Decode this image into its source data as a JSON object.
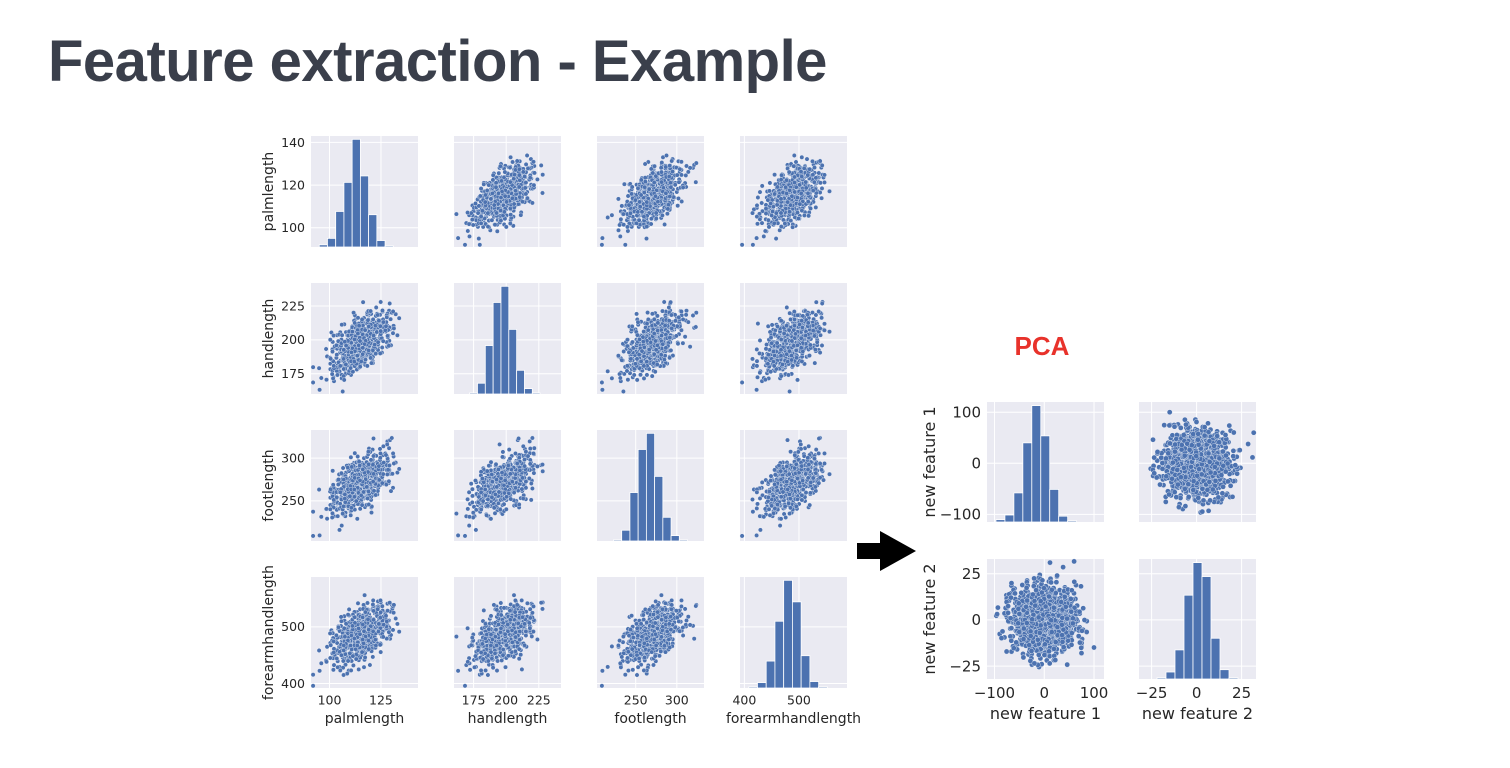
{
  "slide": {
    "title": "Feature extraction - Example",
    "transform_label": "PCA",
    "colors": {
      "title": "#3a3f4b",
      "accent": "#e8322b",
      "point": "#4c72b0",
      "panel_bg": "#eaeaf2"
    },
    "arrow_icon": "right-arrow"
  },
  "chart_data": [
    {
      "type": "scatter",
      "kind": "pairplot",
      "variables": [
        "palmlength",
        "handlength",
        "footlength",
        "forearmhandlength"
      ],
      "ranges": {
        "palmlength": [
          91,
          143
        ],
        "handlength": [
          160,
          242
        ],
        "footlength": [
          203,
          333
        ],
        "forearmhandlength": [
          392,
          588
        ]
      },
      "yticks": {
        "palmlength": [
          100,
          120,
          140
        ],
        "handlength": [
          175,
          200,
          225
        ],
        "footlength": [
          250,
          300
        ],
        "forearmhandlength": [
          400,
          500
        ]
      },
      "xticks": {
        "palmlength": [
          100,
          125
        ],
        "handlength": [
          175,
          200,
          225
        ],
        "footlength": [
          250,
          300
        ],
        "forearmhandlength": [
          400,
          500
        ]
      },
      "means": {
        "palmlength": 115,
        "handlength": 197,
        "footlength": 270,
        "forearmhandlength": 485
      },
      "correlation_with_palmlength_approx": 0.75,
      "diagonal_histograms": {
        "palmlength": {
          "bins": [
            91,
            95,
            99,
            103,
            107,
            111,
            115,
            119,
            123,
            127,
            131,
            135,
            139,
            143
          ],
          "counts": [
            0,
            2,
            8,
            33,
            60,
            100,
            66,
            30,
            6,
            1,
            0,
            0,
            0
          ]
        },
        "handlength": {
          "bins": [
            160,
            166,
            172,
            178,
            184,
            190,
            196,
            202,
            208,
            214,
            220,
            226,
            232,
            238,
            244
          ],
          "counts": [
            0,
            0,
            1,
            10,
            45,
            85,
            100,
            60,
            22,
            5,
            1,
            0,
            0,
            0
          ]
        },
        "footlength": {
          "bins": [
            203,
            213,
            223,
            233,
            243,
            253,
            263,
            273,
            283,
            293,
            303,
            313,
            323,
            333
          ],
          "counts": [
            0,
            0,
            1,
            10,
            45,
            85,
            100,
            60,
            22,
            5,
            1,
            0,
            0
          ]
        },
        "forearmhandlength": {
          "bins": [
            392,
            408,
            424,
            440,
            456,
            472,
            488,
            504,
            520,
            536,
            552,
            568,
            584
          ],
          "counts": [
            0,
            1,
            5,
            25,
            62,
            100,
            80,
            30,
            6,
            1,
            0,
            0
          ]
        }
      }
    },
    {
      "type": "scatter",
      "kind": "pairplot",
      "variables": [
        "new feature 1",
        "new feature 2"
      ],
      "ranges": {
        "new feature 1": [
          -115,
          120
        ],
        "new feature 2": [
          -32,
          33
        ]
      },
      "xticks": {
        "new feature 1": [
          -100,
          0,
          100
        ],
        "new feature 2": [
          -25,
          0,
          25
        ]
      },
      "yticks": {
        "new feature 1": [
          -100,
          0,
          100
        ],
        "new feature 2": [
          -25,
          0,
          25
        ]
      },
      "xtick_labels": {
        "new feature 1": [
          "−100",
          "0",
          "100"
        ],
        "new feature 2": [
          "−25",
          "0",
          "25"
        ]
      },
      "ytick_labels": {
        "new feature 1": [
          "−100",
          "0",
          "100"
        ],
        "new feature 2": [
          "−25",
          "0",
          "25"
        ]
      },
      "means": {
        "new feature 1": 0,
        "new feature 2": 0
      },
      "correlation": 0,
      "diagonal_histograms": {
        "new feature 1": {
          "bins": [
            -115,
            -97,
            -79,
            -61,
            -43,
            -25,
            -7,
            11,
            29,
            47,
            65,
            83,
            101,
            120
          ],
          "counts": [
            0,
            2,
            6,
            25,
            68,
            100,
            74,
            28,
            5,
            1,
            0,
            0,
            0
          ]
        },
        "new feature 2": {
          "bins": [
            -32,
            -27,
            -22,
            -17,
            -12,
            -7,
            -2,
            3,
            8,
            13,
            18,
            23,
            28,
            33
          ],
          "counts": [
            0,
            0,
            1,
            6,
            25,
            72,
            100,
            88,
            35,
            8,
            1,
            0,
            0
          ]
        }
      }
    }
  ]
}
